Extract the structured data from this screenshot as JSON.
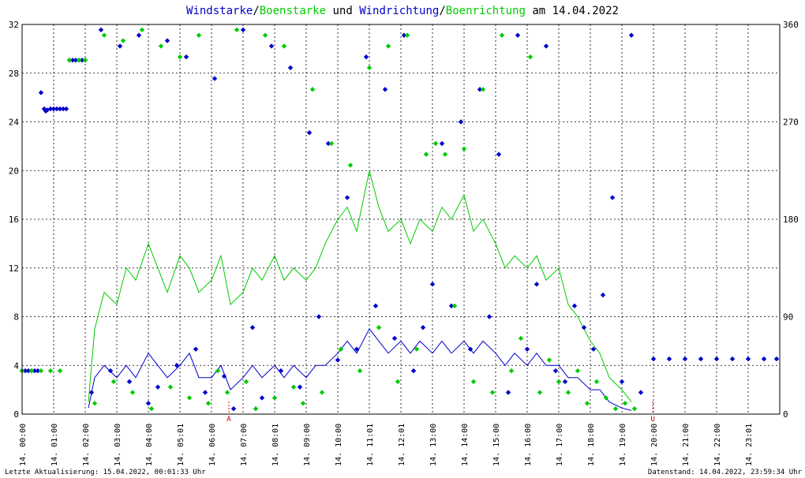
{
  "chart_data": {
    "type": "scatter",
    "title_parts": [
      {
        "text": "Windstarke",
        "color": "#0000cc"
      },
      {
        "text": "/",
        "color": "#000000"
      },
      {
        "text": "Boenstarke",
        "color": "#00cc00"
      },
      {
        "text": " und ",
        "color": "#000000"
      },
      {
        "text": "Windrichtung",
        "color": "#0000cc"
      },
      {
        "text": "/",
        "color": "#000000"
      },
      {
        "text": "Boenrichtung",
        "color": "#00cc00"
      },
      {
        "text": " am 14.04.2022",
        "color": "#000000"
      }
    ],
    "y_left_range": [
      0,
      32
    ],
    "y_left_ticks": [
      "0",
      "4",
      "8",
      "12",
      "16",
      "20",
      "24",
      "28",
      "32"
    ],
    "y_right_range": [
      0,
      360
    ],
    "y_right_ticks": [
      "0",
      "90",
      "180",
      "270",
      "360"
    ],
    "x_range_hours": [
      0,
      24
    ],
    "x_tick_labels": [
      "14. 00:00",
      "14. 01:00",
      "14. 02:00",
      "14. 03:00",
      "14. 04:00",
      "14. 05:01",
      "14. 06:00",
      "14. 07:00",
      "14. 08:01",
      "14. 09:00",
      "14. 10:00",
      "14. 11:01",
      "14. 12:01",
      "14. 13:00",
      "14. 14:00",
      "14. 15:00",
      "14. 16:00",
      "14. 17:00",
      "14. 18:00",
      "14. 19:00",
      "14. 20:00",
      "14. 21:00",
      "14. 22:00",
      "14. 23:01"
    ],
    "markers": [
      {
        "hour": 6.55,
        "label": "A",
        "color": "#cc0000"
      },
      {
        "hour": 19.98,
        "label": "U",
        "color": "#cc0000"
      }
    ],
    "grid": true,
    "series": [
      {
        "name": "Windstarke",
        "color": "#0000cc",
        "kind": "line",
        "axis": "left",
        "x": [
          2.1,
          2.3,
          2.6,
          3.0,
          3.3,
          3.6,
          4.0,
          4.3,
          4.6,
          5.0,
          5.3,
          5.6,
          6.0,
          6.3,
          6.6,
          7.0,
          7.3,
          7.6,
          8.0,
          8.3,
          8.6,
          9.0,
          9.3,
          9.6,
          10.0,
          10.3,
          10.6,
          11.0,
          11.3,
          11.6,
          12.0,
          12.3,
          12.6,
          13.0,
          13.3,
          13.6,
          14.0,
          14.3,
          14.6,
          15.0,
          15.3,
          15.6,
          16.0,
          16.3,
          16.6,
          17.0,
          17.3,
          17.6,
          18.0,
          18.3,
          18.6,
          19.0,
          19.3
        ],
        "y": [
          0.5,
          3,
          4,
          3,
          4,
          3,
          5,
          4,
          3,
          4,
          5,
          3,
          3,
          4,
          2,
          3,
          4,
          3,
          4,
          3,
          4,
          3,
          4,
          4,
          5,
          6,
          5,
          7,
          6,
          5,
          6,
          5,
          6,
          5,
          6,
          5,
          6,
          5,
          6,
          5,
          4,
          5,
          4,
          5,
          4,
          4,
          3,
          3,
          2,
          2,
          1,
          0.5,
          0.3
        ]
      },
      {
        "name": "Boenstarke",
        "color": "#00cc00",
        "kind": "line",
        "axis": "left",
        "x": [
          2.1,
          2.3,
          2.6,
          3.0,
          3.3,
          3.6,
          4.0,
          4.3,
          4.6,
          5.0,
          5.3,
          5.6,
          6.0,
          6.3,
          6.6,
          7.0,
          7.3,
          7.6,
          8.0,
          8.3,
          8.6,
          9.0,
          9.3,
          9.6,
          10.0,
          10.3,
          10.6,
          11.0,
          11.3,
          11.6,
          12.0,
          12.3,
          12.6,
          13.0,
          13.3,
          13.6,
          14.0,
          14.3,
          14.6,
          15.0,
          15.3,
          15.6,
          16.0,
          16.3,
          16.6,
          17.0,
          17.3,
          17.6,
          18.0,
          18.3,
          18.6,
          19.0,
          19.3
        ],
        "y": [
          1,
          7,
          10,
          9,
          12,
          11,
          14,
          12,
          10,
          13,
          12,
          10,
          11,
          13,
          9,
          10,
          12,
          11,
          13,
          11,
          12,
          11,
          12,
          14,
          16,
          17,
          15,
          20,
          17,
          15,
          16,
          14,
          16,
          15,
          17,
          16,
          18,
          15,
          16,
          14,
          12,
          13,
          12,
          13,
          11,
          12,
          9,
          8,
          6,
          5,
          3,
          2,
          1
        ]
      },
      {
        "name": "Windrichtung",
        "color": "#0000cc",
        "kind": "points",
        "axis": "right",
        "x": [
          0.0,
          0.1,
          0.2,
          0.3,
          0.4,
          0.5,
          0.6,
          0.7,
          0.75,
          0.8,
          0.9,
          1.0,
          1.1,
          1.2,
          1.3,
          1.4,
          1.5,
          1.6,
          1.7,
          1.8,
          1.9,
          2.0,
          2.2,
          2.5,
          2.8,
          3.1,
          3.4,
          3.7,
          4.0,
          4.3,
          4.6,
          4.9,
          5.2,
          5.5,
          5.8,
          6.1,
          6.4,
          6.7,
          7.0,
          7.3,
          7.6,
          7.9,
          8.2,
          8.5,
          8.8,
          9.1,
          9.4,
          9.7,
          10.0,
          10.3,
          10.6,
          10.9,
          11.2,
          11.5,
          11.8,
          12.1,
          12.4,
          12.7,
          13.0,
          13.3,
          13.6,
          13.9,
          14.2,
          14.5,
          14.8,
          15.1,
          15.4,
          15.7,
          16.0,
          16.3,
          16.6,
          16.9,
          17.2,
          17.5,
          17.8,
          18.1,
          18.4,
          18.7,
          19.0,
          19.3,
          19.6,
          20.0,
          20.5,
          21.0,
          21.5,
          22.0,
          22.5,
          23.0,
          23.5,
          23.9
        ],
        "y": [
          40,
          40,
          40,
          40,
          40,
          40,
          297,
          282,
          280,
          281,
          282,
          282,
          282,
          282,
          282,
          282,
          327,
          327,
          327,
          327,
          327,
          327,
          20,
          355,
          40,
          340,
          30,
          350,
          10,
          25,
          345,
          45,
          330,
          60,
          20,
          310,
          35,
          5,
          355,
          80,
          15,
          340,
          40,
          320,
          25,
          260,
          90,
          250,
          50,
          200,
          60,
          330,
          100,
          300,
          70,
          350,
          40,
          80,
          120,
          250,
          100,
          270,
          60,
          300,
          90,
          240,
          20,
          350,
          60,
          120,
          340,
          40,
          30,
          100,
          80,
          60,
          110,
          200,
          30,
          350,
          20,
          51,
          51,
          51,
          51,
          51,
          51,
          51,
          51,
          51
        ]
      },
      {
        "name": "Boenrichtung",
        "color": "#00cc00",
        "kind": "points",
        "axis": "right",
        "x": [
          0.0,
          0.3,
          0.6,
          0.9,
          1.2,
          1.5,
          1.8,
          2.0,
          2.3,
          2.6,
          2.9,
          3.2,
          3.5,
          3.8,
          4.1,
          4.4,
          4.7,
          5.0,
          5.3,
          5.6,
          5.9,
          6.2,
          6.5,
          6.8,
          7.1,
          7.4,
          7.7,
          8.0,
          8.3,
          8.6,
          8.9,
          9.2,
          9.5,
          9.8,
          10.1,
          10.4,
          10.7,
          11.0,
          11.3,
          11.6,
          11.9,
          12.2,
          12.5,
          12.8,
          13.1,
          13.4,
          13.7,
          14.0,
          14.3,
          14.6,
          14.9,
          15.2,
          15.5,
          15.8,
          16.1,
          16.4,
          16.7,
          17.0,
          17.3,
          17.6,
          17.9,
          18.2,
          18.5,
          18.8,
          19.1,
          19.4
        ],
        "y": [
          40,
          40,
          40,
          40,
          40,
          327,
          327,
          327,
          10,
          350,
          30,
          345,
          20,
          355,
          5,
          340,
          25,
          330,
          15,
          350,
          10,
          40,
          20,
          355,
          30,
          5,
          350,
          15,
          340,
          25,
          10,
          300,
          20,
          250,
          60,
          230,
          40,
          320,
          80,
          340,
          30,
          350,
          60,
          240,
          250,
          240,
          100,
          245,
          30,
          300,
          20,
          350,
          40,
          70,
          330,
          20,
          50,
          30,
          20,
          40,
          10,
          30,
          15,
          5,
          10,
          5
        ]
      }
    ]
  },
  "footer": {
    "left": "Letzte Aktualisierung: 15.04.2022, 00:01:33 Uhr",
    "right": "Datenstand: 14.04.2022, 23:59:34 Uhr"
  }
}
